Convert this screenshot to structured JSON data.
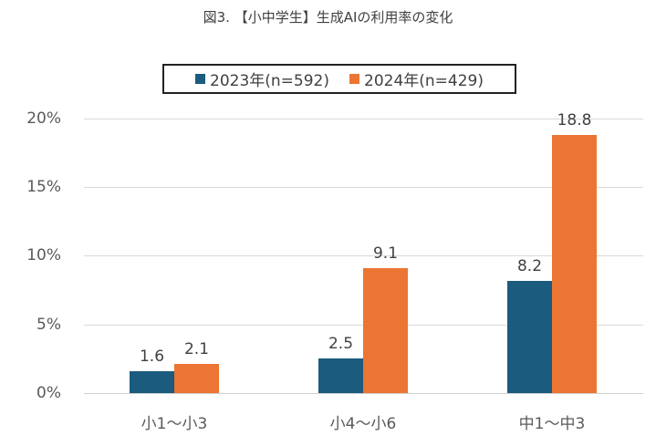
{
  "chart_data": {
    "type": "bar",
    "title": "図3. 【小中学生】生成AIの利用率の変化",
    "categories": [
      "小1～小3",
      "小4～小6",
      "中1～中3"
    ],
    "series": [
      {
        "name": "2023年(n=592)",
        "color": "#1a5b7e",
        "values": [
          1.6,
          2.5,
          8.2
        ]
      },
      {
        "name": "2024年(n=429)",
        "color": "#ec7533",
        "values": [
          2.1,
          9.1,
          18.8
        ]
      }
    ],
    "data_labels": {
      "2023": [
        "1.6",
        "2.5",
        "8.2"
      ],
      "2024": [
        "2.1",
        "9.1",
        "18.8"
      ]
    },
    "xlabel": "",
    "ylabel": "",
    "ylim": [
      0,
      20
    ],
    "yticks": [
      "0%",
      "5%",
      "10%",
      "15%",
      "20%"
    ],
    "grid": true,
    "legend_position": "top"
  },
  "legend": {
    "items": [
      {
        "label": "2023年(n=592)",
        "color": "#1a5b7e"
      },
      {
        "label": "2024年(n=429)",
        "color": "#ec7533"
      }
    ]
  }
}
